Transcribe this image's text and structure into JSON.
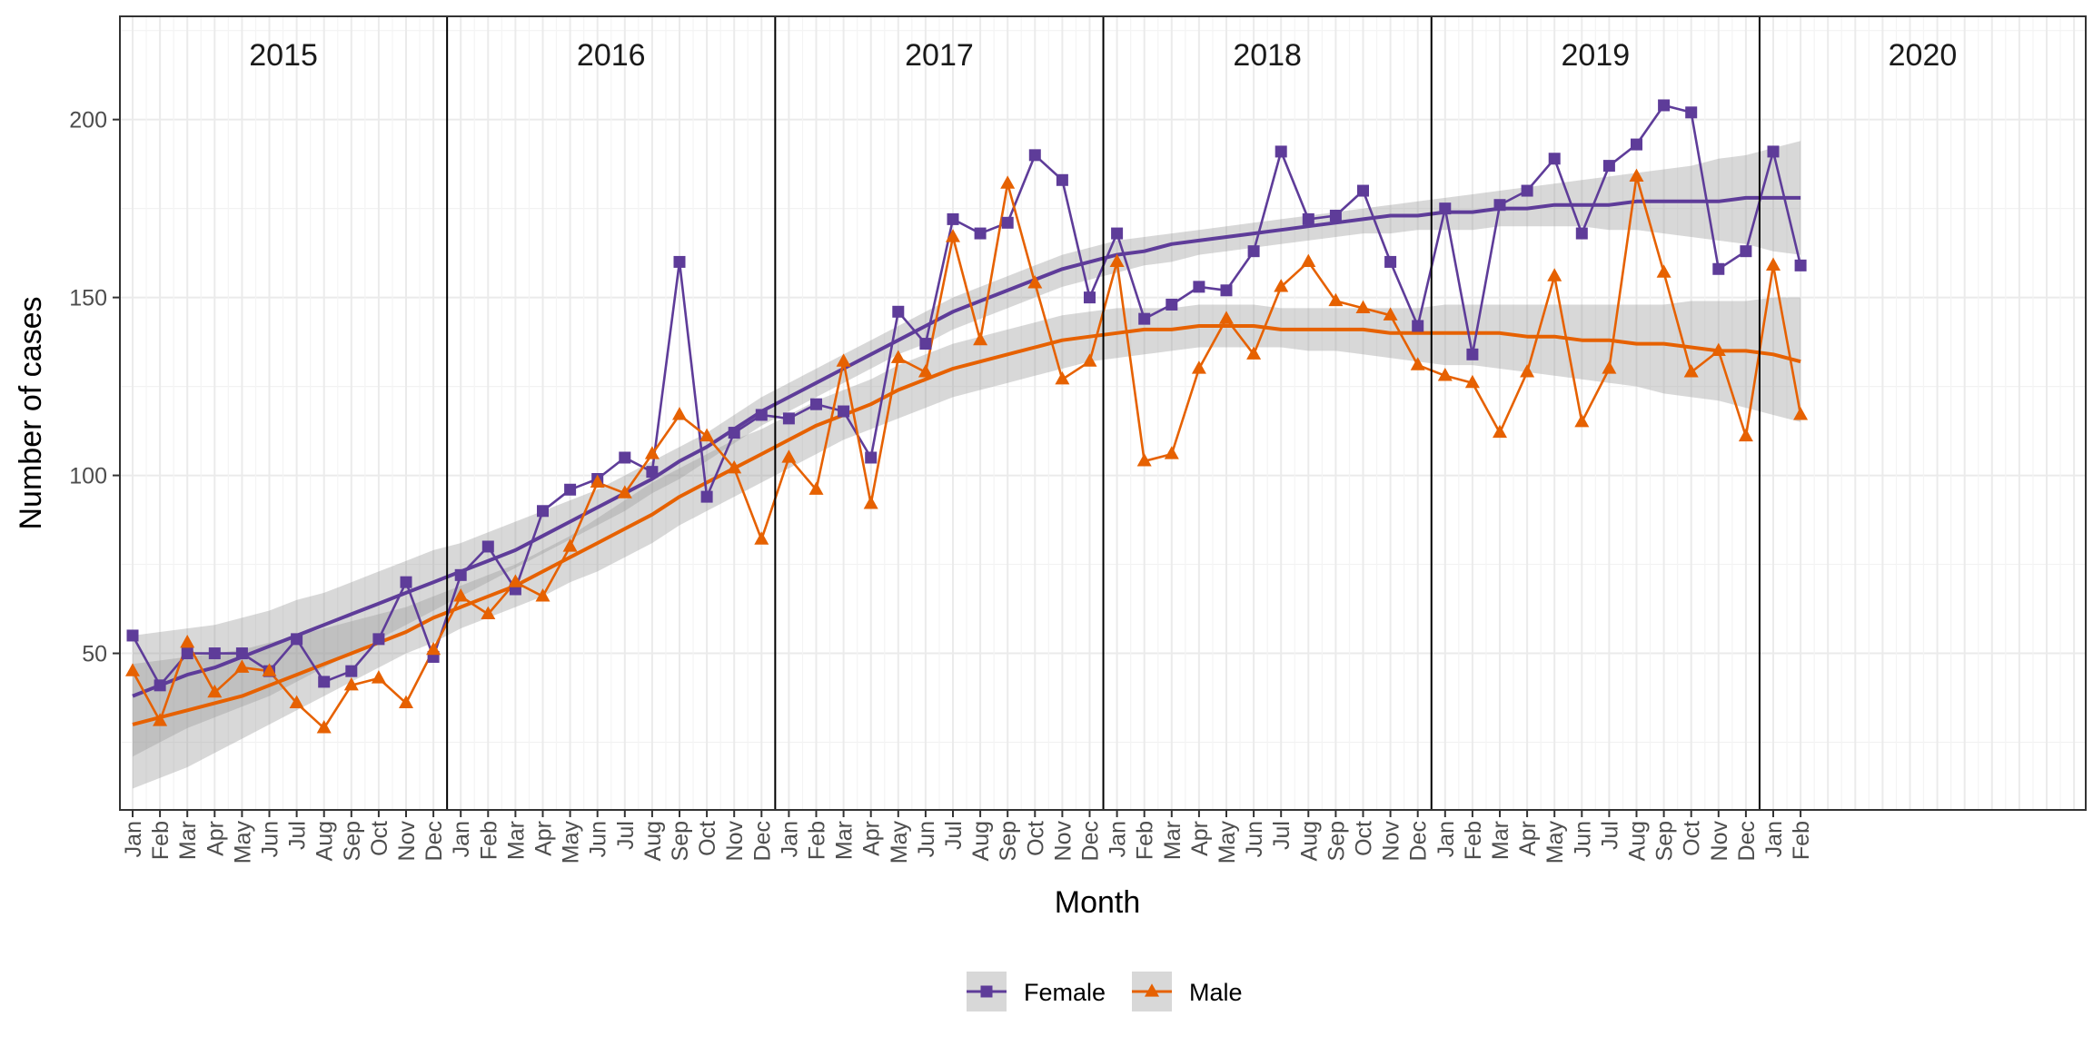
{
  "chart_data": {
    "type": "line",
    "xlabel": "Month",
    "ylabel": "Number of cases",
    "ylim": [
      6,
      229
    ],
    "yticks": [
      50,
      100,
      150,
      200
    ],
    "grid": true,
    "legend_position": "bottom",
    "facets": [
      "2015",
      "2016",
      "2017",
      "2018",
      "2019",
      "2020"
    ],
    "month_labels": [
      "Jan",
      "Feb",
      "Mar",
      "Apr",
      "May",
      "Jun",
      "Jul",
      "Aug",
      "Sep",
      "Oct",
      "Nov",
      "Dec"
    ],
    "months_per_facet": [
      12,
      12,
      12,
      12,
      12,
      2
    ],
    "series": [
      {
        "name": "Female",
        "color": "#5e3c99",
        "marker": "square",
        "values": [
          55,
          41,
          50,
          50,
          50,
          45,
          54,
          42,
          45,
          54,
          70,
          49,
          72,
          80,
          68,
          90,
          96,
          99,
          105,
          101,
          160,
          94,
          112,
          117,
          116,
          120,
          118,
          105,
          146,
          137,
          172,
          168,
          171,
          190,
          183,
          150,
          168,
          144,
          148,
          153,
          152,
          163,
          191,
          172,
          173,
          180,
          160,
          142,
          175,
          134,
          176,
          180,
          189,
          168,
          187,
          193,
          204,
          202,
          158,
          163,
          191,
          159
        ],
        "trend": [
          38,
          41,
          44,
          46,
          49,
          52,
          55,
          58,
          61,
          64,
          67,
          70,
          73,
          76,
          79,
          83,
          87,
          91,
          95,
          99,
          104,
          108,
          113,
          118,
          122,
          126,
          130,
          134,
          138,
          142,
          146,
          149,
          152,
          155,
          158,
          160,
          162,
          163,
          165,
          166,
          167,
          168,
          169,
          170,
          171,
          172,
          173,
          173,
          174,
          174,
          175,
          175,
          176,
          176,
          176,
          177,
          177,
          177,
          177,
          178,
          178,
          178
        ],
        "band_lower": [
          21,
          25,
          29,
          32,
          35,
          38,
          42,
          46,
          50,
          54,
          58,
          62,
          66,
          70,
          74,
          78,
          82,
          86,
          90,
          95,
          99,
          104,
          109,
          114,
          118,
          122,
          126,
          130,
          134,
          137,
          141,
          144,
          147,
          150,
          153,
          155,
          157,
          159,
          160,
          162,
          163,
          164,
          165,
          166,
          167,
          168,
          168,
          169,
          169,
          169,
          170,
          170,
          170,
          170,
          169,
          169,
          168,
          167,
          166,
          165,
          163,
          162
        ],
        "band_upper": [
          55,
          56,
          57,
          58,
          60,
          62,
          65,
          67,
          70,
          73,
          76,
          79,
          81,
          84,
          87,
          90,
          93,
          96,
          100,
          104,
          108,
          112,
          117,
          122,
          126,
          130,
          134,
          138,
          142,
          146,
          150,
          153,
          156,
          159,
          162,
          164,
          166,
          167,
          168,
          169,
          170,
          171,
          172,
          173,
          174,
          175,
          176,
          177,
          178,
          179,
          180,
          181,
          182,
          183,
          184,
          185,
          186,
          187,
          189,
          190,
          192,
          194
        ]
      },
      {
        "name": "Male",
        "color": "#e66101",
        "marker": "triangle",
        "values": [
          45,
          31,
          53,
          39,
          46,
          45,
          36,
          29,
          41,
          43,
          36,
          51,
          66,
          61,
          70,
          66,
          80,
          98,
          95,
          106,
          117,
          111,
          102,
          82,
          105,
          96,
          132,
          92,
          133,
          129,
          167,
          138,
          182,
          154,
          127,
          132,
          160,
          104,
          106,
          130,
          144,
          134,
          153,
          160,
          149,
          147,
          145,
          131,
          128,
          126,
          112,
          129,
          156,
          115,
          130,
          184,
          157,
          129,
          135,
          111,
          159,
          117
        ],
        "trend": [
          30,
          32,
          34,
          36,
          38,
          41,
          44,
          47,
          50,
          53,
          56,
          60,
          63,
          66,
          69,
          73,
          77,
          81,
          85,
          89,
          94,
          98,
          102,
          106,
          110,
          114,
          117,
          120,
          124,
          127,
          130,
          132,
          134,
          136,
          138,
          139,
          140,
          141,
          141,
          142,
          142,
          142,
          141,
          141,
          141,
          141,
          140,
          140,
          140,
          140,
          140,
          139,
          139,
          138,
          138,
          137,
          137,
          136,
          135,
          135,
          134,
          132
        ],
        "band_lower": [
          12,
          15,
          18,
          22,
          26,
          30,
          34,
          38,
          42,
          46,
          50,
          53,
          57,
          60,
          63,
          66,
          70,
          73,
          77,
          81,
          86,
          90,
          94,
          98,
          102,
          106,
          110,
          113,
          116,
          119,
          122,
          124,
          126,
          128,
          130,
          132,
          133,
          134,
          135,
          136,
          136,
          136,
          136,
          135,
          135,
          134,
          133,
          132,
          131,
          131,
          130,
          129,
          128,
          127,
          126,
          125,
          123,
          122,
          121,
          119,
          117,
          115
        ],
        "band_upper": [
          47,
          48,
          49,
          50,
          51,
          53,
          55,
          57,
          59,
          61,
          63,
          66,
          69,
          72,
          75,
          79,
          83,
          88,
          93,
          98,
          102,
          106,
          110,
          113,
          117,
          121,
          124,
          127,
          131,
          134,
          137,
          139,
          141,
          143,
          145,
          146,
          147,
          147,
          147,
          148,
          148,
          148,
          147,
          147,
          147,
          147,
          147,
          147,
          148,
          148,
          148,
          148,
          148,
          148,
          148,
          148,
          148,
          149,
          149,
          149,
          150,
          150
        ]
      }
    ]
  }
}
